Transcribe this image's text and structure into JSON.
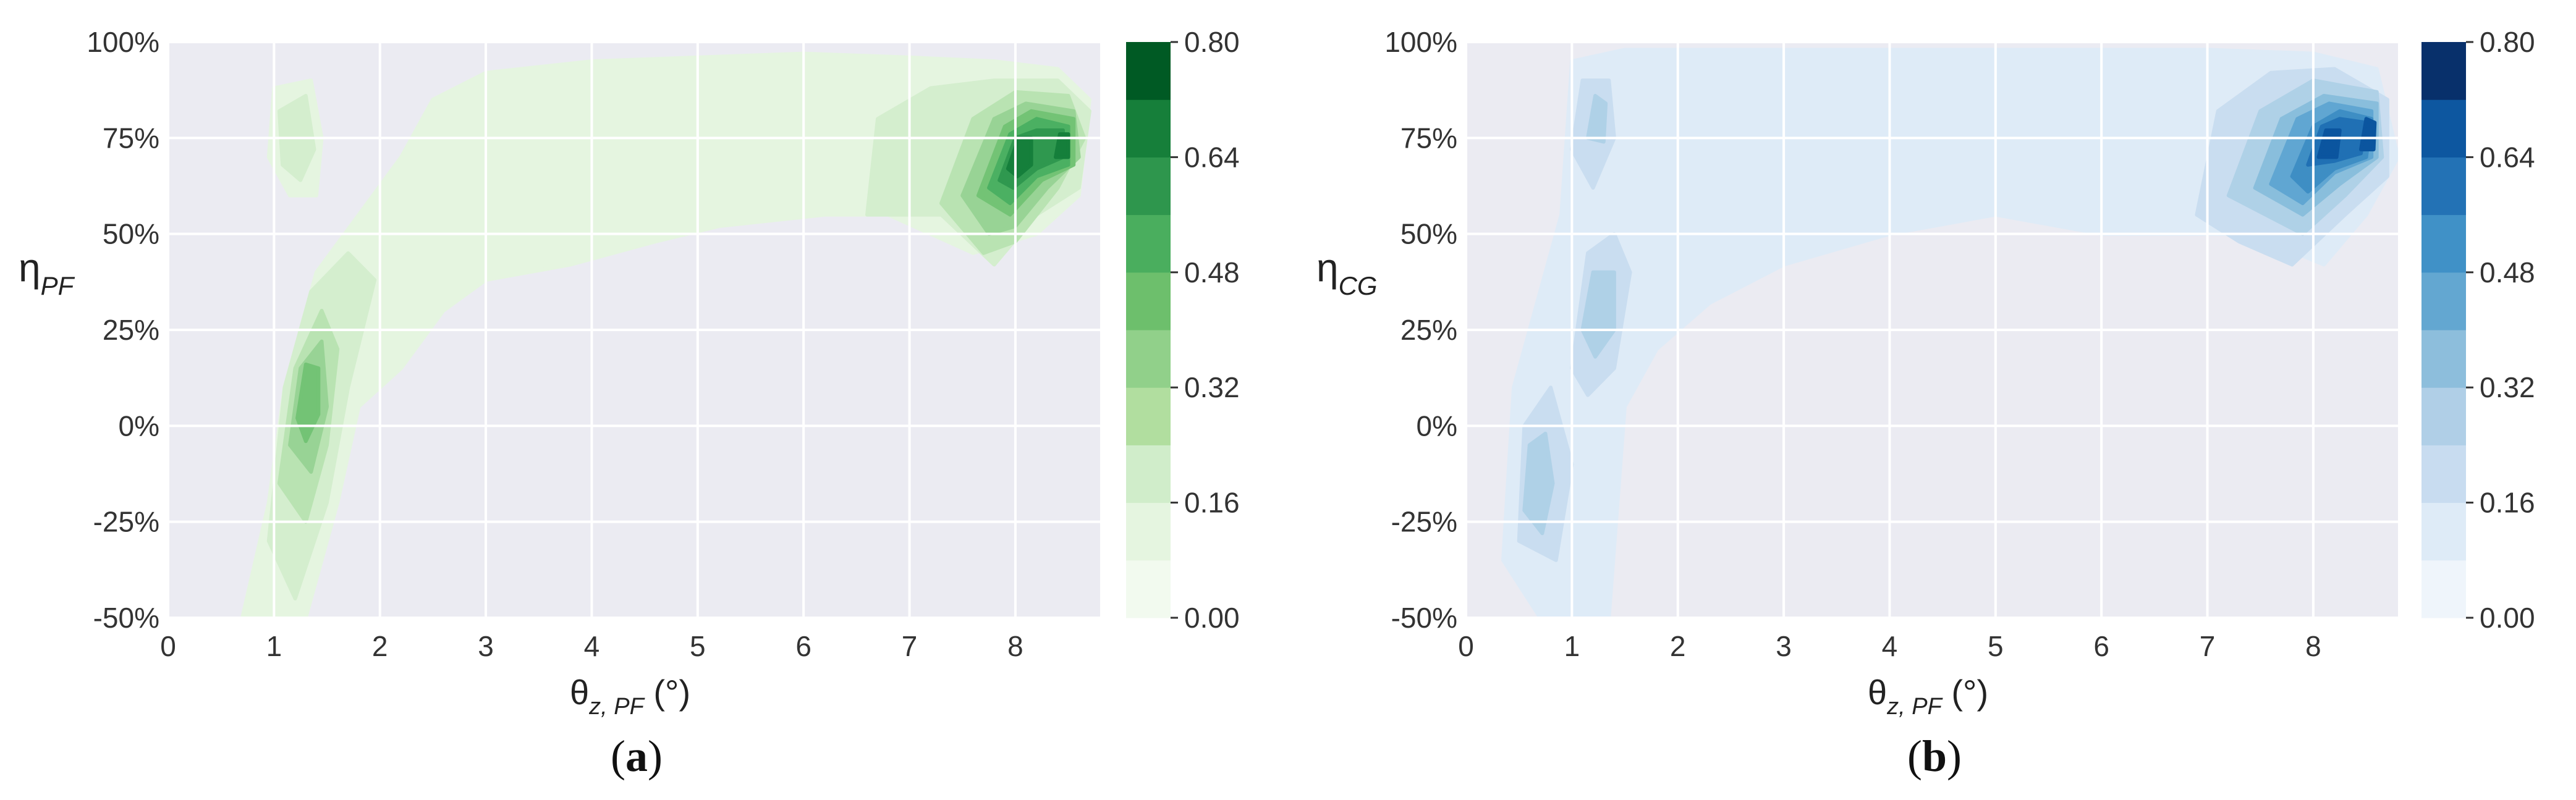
{
  "figure": {
    "panels": [
      {
        "caption": "(a)",
        "caption_bold": "a"
      },
      {
        "caption": "(b)",
        "caption_bold": "b"
      }
    ]
  },
  "chart_data": [
    {
      "type": "contour",
      "panel": "a",
      "ylabel": "η",
      "ylabel_sub": "PF",
      "xlabel": "θ",
      "xlabel_sub": "z, PF",
      "xlabel_unit": " (°)",
      "xlim": [
        0,
        8.8
      ],
      "ylim": [
        -0.5,
        1.0
      ],
      "xticks": [
        0,
        1,
        2,
        3,
        4,
        5,
        6,
        7,
        8
      ],
      "yticks": [
        -0.5,
        -0.25,
        0,
        0.25,
        0.5,
        0.75,
        1.0
      ],
      "ytick_labels": [
        "-50%",
        "-25%",
        "0%",
        "25%",
        "50%",
        "75%",
        "100%"
      ],
      "grid": true,
      "colormap": "Greens",
      "colors": [
        "#e5f5e0",
        "#d4eece",
        "#b9e3b2",
        "#98d395",
        "#73c375",
        "#4bb062",
        "#2f984f",
        "#157f3b",
        "#005a24"
      ],
      "background": "#ebebf2",
      "colorbar": {
        "ticks": [
          0.0,
          0.16,
          0.32,
          0.48,
          0.64,
          0.8
        ],
        "tick_labels": [
          "0.00",
          "0.16",
          "0.32",
          "0.48",
          "0.64",
          "0.80"
        ],
        "levels": 10
      },
      "density_peaks": [
        {
          "x": 8.0,
          "y": 0.72,
          "value": 0.78
        },
        {
          "x": 8.45,
          "y": 0.74,
          "value": 0.72
        },
        {
          "x": 1.3,
          "y": 0.1,
          "value": 0.45
        },
        {
          "x": 1.2,
          "y": 0.77,
          "value": 0.2
        }
      ]
    },
    {
      "type": "contour",
      "panel": "b",
      "ylabel": "η",
      "ylabel_sub": "CG",
      "xlabel": "θ",
      "xlabel_sub": "z, PF",
      "xlabel_unit": " (°)",
      "xlim": [
        0,
        8.8
      ],
      "ylim": [
        -0.5,
        1.0
      ],
      "xticks": [
        0,
        1,
        2,
        3,
        4,
        5,
        6,
        7,
        8
      ],
      "yticks": [
        -0.5,
        -0.25,
        0,
        0.25,
        0.5,
        0.75,
        1.0
      ],
      "ytick_labels": [
        "-50%",
        "-25%",
        "0%",
        "25%",
        "50%",
        "75%",
        "100%"
      ],
      "grid": true,
      "colormap": "Blues",
      "colors": [
        "#deebf7",
        "#c9ddf0",
        "#afd1e7",
        "#89bedc",
        "#60a6d2",
        "#3e8ec4",
        "#2070b4",
        "#0b559f",
        "#08306b"
      ],
      "background": "#ebebf2",
      "colorbar": {
        "ticks": [
          0.0,
          0.16,
          0.32,
          0.48,
          0.64,
          0.8
        ],
        "tick_labels": [
          "0.00",
          "0.16",
          "0.32",
          "0.48",
          "0.64",
          "0.80"
        ],
        "levels": 10
      },
      "density_peaks": [
        {
          "x": 8.1,
          "y": 0.74,
          "value": 0.74
        },
        {
          "x": 8.5,
          "y": 0.76,
          "value": 0.76
        },
        {
          "x": 0.65,
          "y": -0.11,
          "value": 0.3
        },
        {
          "x": 1.25,
          "y": 0.32,
          "value": 0.28
        },
        {
          "x": 1.25,
          "y": 0.8,
          "value": 0.2
        }
      ]
    }
  ]
}
